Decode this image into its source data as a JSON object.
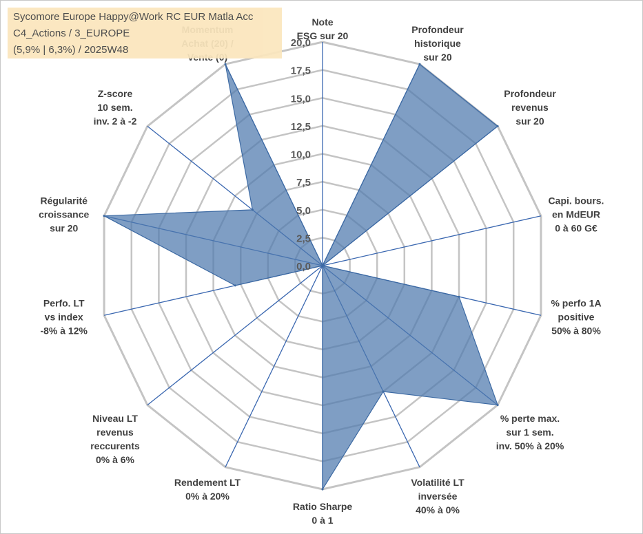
{
  "info_box": {
    "line1": "Sycomore Europe Happy@Work RC EUR Matla Acc",
    "line2": "C4_Actions / 3_EUROPE",
    "line3": "(5,9% | 6,3%) / 2025W48"
  },
  "chart_data": {
    "type": "radar",
    "rmin": 0,
    "rmax": 20,
    "ticks": [
      "0,0",
      "2,5",
      "5,0",
      "7,5",
      "10,0",
      "12,5",
      "15,0",
      "17,5",
      "20,0"
    ],
    "tick_values": [
      0,
      2.5,
      5,
      7.5,
      10,
      12.5,
      15,
      17.5,
      20
    ],
    "grid": true,
    "colors": {
      "fill": "#4e79ad",
      "stroke": "#3d6aa3",
      "spoke": "#3a67b0",
      "grid": "#c4c4c4"
    },
    "axes": [
      {
        "label": [
          "Note",
          "ESG sur 20"
        ]
      },
      {
        "label": [
          "Profondeur",
          "historique",
          "sur 20"
        ]
      },
      {
        "label": [
          "Profondeur",
          "revenus",
          "sur 20"
        ]
      },
      {
        "label": [
          "Capi. bours.",
          "en MdEUR",
          "0 à 60 G€"
        ]
      },
      {
        "label": [
          "% perfo 1A",
          "positive",
          "50% à 80%"
        ]
      },
      {
        "label": [
          "% perte max.",
          "sur 1 sem.",
          "inv. 50% à 20%"
        ]
      },
      {
        "label": [
          "Volatilité LT",
          "inversée",
          "40% à 0%"
        ]
      },
      {
        "label": [
          "Ratio Sharpe",
          "0 à 1"
        ]
      },
      {
        "label": [
          "Rendement LT",
          "0% à 20%"
        ]
      },
      {
        "label": [
          "Niveau LT",
          "revenus",
          "reccurents",
          "0% à 6%"
        ]
      },
      {
        "label": [
          "Perfo. LT",
          "vs index",
          "-8% à 12%"
        ]
      },
      {
        "label": [
          "Régularité",
          "croissance",
          "sur 20"
        ]
      },
      {
        "label": [
          "Z-score",
          "10 sem.",
          "inv. 2 à -2"
        ]
      },
      {
        "label": [
          "Momentum",
          "Achat (20) /",
          "Vente (0)"
        ]
      }
    ],
    "series": [
      {
        "values": [
          0,
          20,
          20,
          0,
          12.5,
          20,
          12.5,
          20,
          0,
          0,
          8,
          20,
          8,
          20
        ]
      }
    ]
  }
}
